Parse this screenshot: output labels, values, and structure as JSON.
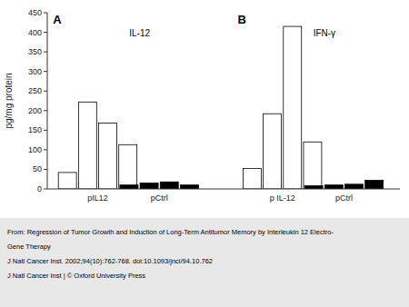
{
  "chart_data": {
    "type": "bar",
    "y_label": "pg/mg protein",
    "categories": [
      "pIL12",
      "pCtrl",
      "p IL-12",
      "pCtrl"
    ],
    "series": [
      {
        "values": [
          42,
          10,
          52,
          8
        ],
        "colors": [
          "white",
          "black",
          "white",
          "black"
        ]
      },
      {
        "values": [
          222,
          15,
          192,
          10
        ],
        "colors": [
          "white",
          "black",
          "white",
          "black"
        ]
      },
      {
        "values": [
          168,
          18,
          415,
          12
        ],
        "colors": [
          "white",
          "black",
          "white",
          "black"
        ]
      },
      {
        "values": [
          113,
          10,
          120,
          22
        ],
        "colors": [
          "white",
          "black",
          "white",
          "black"
        ]
      }
    ],
    "annotations": [
      "A",
      "IL-12",
      "B",
      "IFN-γ"
    ],
    "footer": [
      "From: Regression of Tumor Growth and Induction of Long-Term Antitumor Memory by Interleukin 12 Electro-",
      "Gene Therapy",
      "J Natl Cancer Inst. 2002;94(10):762-768. doi:10.1093/jnci/94.10.762",
      "J Natl Cancer Inst | © Oxford University Press"
    ],
    "ylim": [
      0,
      450
    ],
    "yticks": [
      0,
      50,
      100,
      150,
      200,
      250,
      300,
      350,
      400,
      450
    ],
    "grid": false
  }
}
